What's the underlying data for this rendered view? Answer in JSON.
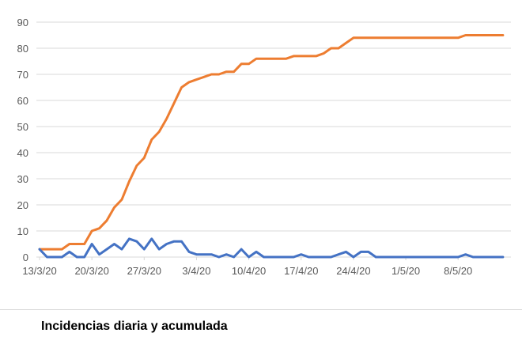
{
  "caption": "Incidencias diaria y acumulada",
  "colors": {
    "series_daily": "#4472C4",
    "series_cumulative": "#ED7D31",
    "grid": "#d9d9d9",
    "axis_text": "#595959"
  },
  "chart_data": {
    "type": "line",
    "title": "",
    "xlabel": "",
    "ylabel": "",
    "ylim": [
      0,
      90
    ],
    "y_ticks": [
      0,
      10,
      20,
      30,
      40,
      50,
      60,
      70,
      80,
      90
    ],
    "x_tick_labels": [
      "13/3/20",
      "20/3/20",
      "27/3/20",
      "3/4/20",
      "10/4/20",
      "17/4/20",
      "24/4/20",
      "1/5/20",
      "8/5/20"
    ],
    "grid": true,
    "legend": "none",
    "x": [
      "13/3/20",
      "14/3/20",
      "15/3/20",
      "16/3/20",
      "17/3/20",
      "18/3/20",
      "19/3/20",
      "20/3/20",
      "21/3/20",
      "22/3/20",
      "23/3/20",
      "24/3/20",
      "25/3/20",
      "26/3/20",
      "27/3/20",
      "28/3/20",
      "29/3/20",
      "30/3/20",
      "31/3/20",
      "1/4/20",
      "2/4/20",
      "3/4/20",
      "4/4/20",
      "5/4/20",
      "6/4/20",
      "7/4/20",
      "8/4/20",
      "9/4/20",
      "10/4/20",
      "11/4/20",
      "12/4/20",
      "13/4/20",
      "14/4/20",
      "15/4/20",
      "16/4/20",
      "17/4/20",
      "18/4/20",
      "19/4/20",
      "20/4/20",
      "21/4/20",
      "22/4/20",
      "23/4/20",
      "24/4/20",
      "25/4/20",
      "26/4/20",
      "27/4/20",
      "28/4/20",
      "29/4/20",
      "30/4/20",
      "1/5/20",
      "2/5/20",
      "3/5/20",
      "4/5/20",
      "5/5/20",
      "6/5/20",
      "7/5/20",
      "8/5/20",
      "9/5/20",
      "10/5/20",
      "11/5/20",
      "12/5/20",
      "13/5/20",
      "14/5/20"
    ],
    "series": [
      {
        "values": [
          3,
          0,
          0,
          0,
          2,
          0,
          0,
          5,
          1,
          3,
          5,
          3,
          7,
          6,
          3,
          7,
          3,
          5,
          6,
          6,
          2,
          1,
          1,
          1,
          0,
          1,
          0,
          3,
          0,
          2,
          0,
          0,
          0,
          0,
          0,
          1,
          0,
          0,
          0,
          0,
          1,
          2,
          0,
          2,
          2,
          0,
          0,
          0,
          0,
          0,
          0,
          0,
          0,
          0,
          0,
          0,
          0,
          1,
          0,
          0,
          0,
          0,
          0
        ]
      },
      {
        "values": [
          3,
          3,
          3,
          3,
          5,
          5,
          5,
          10,
          11,
          14,
          19,
          22,
          29,
          35,
          38,
          45,
          48,
          53,
          59,
          65,
          67,
          68,
          69,
          70,
          70,
          71,
          71,
          74,
          74,
          76,
          76,
          76,
          76,
          76,
          77,
          77,
          77,
          77,
          78,
          80,
          80,
          82,
          84,
          84,
          84,
          84,
          84,
          84,
          84,
          84,
          84,
          84,
          84,
          84,
          84,
          84,
          84,
          85,
          85,
          85,
          85,
          85,
          85
        ]
      }
    ]
  }
}
